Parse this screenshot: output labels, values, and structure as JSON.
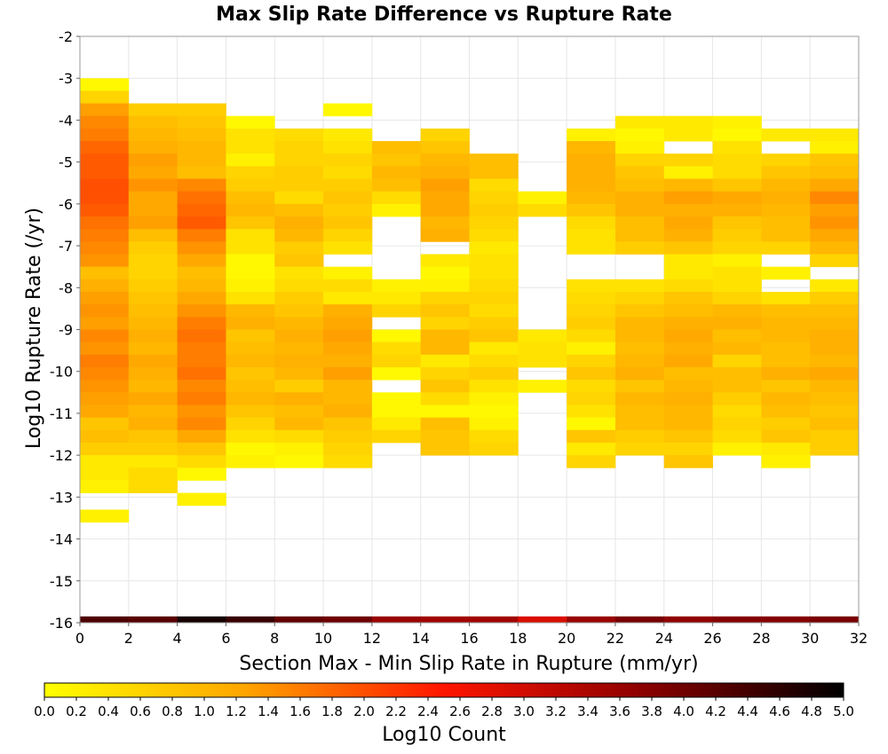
{
  "chart_data": {
    "type": "heatmap",
    "title": "Max Slip Rate Difference vs Rupture Rate",
    "xlabel": "Section Max - Min Slip Rate in Rupture (mm/yr)",
    "ylabel": "Log10 Rupture Rate (/yr)",
    "colorbar_label": "Log10 Count",
    "xlim": [
      0,
      32
    ],
    "ylim": [
      -16,
      -2
    ],
    "x_ticks": [
      "0",
      "2",
      "4",
      "6",
      "8",
      "10",
      "12",
      "14",
      "16",
      "18",
      "20",
      "22",
      "24",
      "26",
      "28",
      "30",
      "32"
    ],
    "y_ticks": [
      "-2",
      "-3",
      "-4",
      "-5",
      "-6",
      "-7",
      "-8",
      "-9",
      "-10",
      "-11",
      "-12",
      "-13",
      "-14",
      "-15",
      "-16"
    ],
    "colorbar_range": [
      0,
      5
    ],
    "colorbar_ticks": [
      "0.0",
      "0.2",
      "0.4",
      "0.6",
      "0.8",
      "1.0",
      "1.2",
      "1.4",
      "1.6",
      "1.8",
      "2.0",
      "2.2",
      "2.4",
      "2.6",
      "2.8",
      "3.0",
      "3.2",
      "3.4",
      "3.6",
      "3.8",
      "4.0",
      "4.2",
      "4.4",
      "4.6",
      "4.8",
      "5.0"
    ],
    "colormap": [
      "#ffff00",
      "#ffa500",
      "#ff1500",
      "#8b0000",
      "#000000"
    ],
    "grid": true,
    "x_bin_width": 2,
    "y_bin_height": 0.3,
    "rows_y_start": [
      -3.0,
      -3.3,
      -3.6,
      -3.9,
      -4.2,
      -4.5,
      -4.8,
      -5.1,
      -5.4,
      -5.7,
      -6.0,
      -6.3,
      -6.6,
      -6.9,
      -7.2,
      -7.5,
      -7.8,
      -8.1,
      -8.4,
      -8.7,
      -9.0,
      -9.3,
      -9.6,
      -9.9,
      -10.2,
      -10.5,
      -10.8,
      -11.1,
      -11.4,
      -11.7,
      -12.0,
      -12.3,
      -12.6,
      -12.9
    ],
    "columns_x_start": [
      0,
      2,
      4,
      6,
      8,
      10,
      12,
      14,
      16,
      18,
      20,
      22,
      24,
      26,
      28,
      30
    ],
    "values_by_row": [
      [
        0.1,
        null,
        null,
        null,
        null,
        null,
        null,
        null,
        null,
        null,
        null,
        null,
        null,
        null,
        null,
        null
      ],
      [
        0.6,
        null,
        null,
        null,
        null,
        null,
        null,
        null,
        null,
        null,
        null,
        null,
        null,
        null,
        null,
        null
      ],
      [
        1.3,
        0.7,
        0.7,
        null,
        null,
        0.1,
        null,
        null,
        null,
        null,
        null,
        null,
        null,
        null,
        null,
        null
      ],
      [
        1.5,
        0.9,
        0.8,
        0.1,
        null,
        null,
        null,
        null,
        null,
        null,
        null,
        0.3,
        0.3,
        0.2,
        null,
        null
      ],
      [
        1.6,
        1.0,
        0.9,
        0.4,
        0.5,
        0.3,
        null,
        0.6,
        null,
        null,
        0.2,
        0.1,
        0.3,
        0.1,
        0.3,
        0.3
      ],
      [
        1.8,
        1.1,
        1.0,
        0.4,
        0.6,
        0.4,
        0.9,
        0.8,
        null,
        null,
        1.0,
        0.2,
        null,
        0.4,
        null,
        0.2
      ],
      [
        1.9,
        1.3,
        1.0,
        0.2,
        0.6,
        0.6,
        0.8,
        1.0,
        0.9,
        null,
        1.1,
        0.6,
        0.6,
        0.5,
        0.6,
        0.8
      ],
      [
        1.9,
        1.2,
        0.9,
        0.6,
        0.7,
        0.5,
        1.0,
        1.1,
        0.9,
        null,
        1.1,
        0.8,
        0.2,
        0.5,
        0.8,
        0.9
      ],
      [
        2.0,
        1.4,
        1.5,
        0.7,
        0.7,
        0.7,
        0.9,
        1.3,
        0.5,
        null,
        1.1,
        0.9,
        1.0,
        0.8,
        1.0,
        1.2
      ],
      [
        2.0,
        1.2,
        1.7,
        0.9,
        0.5,
        0.8,
        0.5,
        1.2,
        0.6,
        0.2,
        1.0,
        1.1,
        1.3,
        1.2,
        1.1,
        1.5
      ],
      [
        1.9,
        1.2,
        1.8,
        1.0,
        0.9,
        0.7,
        0.2,
        1.2,
        0.7,
        0.5,
        0.8,
        1.1,
        1.1,
        1.1,
        1.0,
        1.3
      ],
      [
        1.7,
        1.3,
        1.9,
        0.8,
        1.1,
        0.8,
        null,
        1.0,
        0.6,
        null,
        0.5,
        0.9,
        1.2,
        0.8,
        0.9,
        1.4
      ],
      [
        1.6,
        0.9,
        1.6,
        0.4,
        1.0,
        0.6,
        null,
        1.1,
        0.5,
        null,
        0.4,
        0.9,
        1.1,
        0.7,
        0.9,
        1.2
      ],
      [
        1.5,
        0.7,
        1.4,
        0.4,
        0.7,
        0.4,
        null,
        null,
        0.3,
        null,
        0.4,
        0.7,
        0.8,
        0.6,
        0.6,
        1.0
      ],
      [
        1.4,
        0.6,
        1.2,
        0.1,
        0.8,
        null,
        null,
        0.3,
        0.4,
        null,
        null,
        null,
        0.3,
        0.2,
        null,
        0.6
      ],
      [
        0.9,
        0.6,
        0.9,
        0.1,
        0.4,
        0.2,
        null,
        0.1,
        0.4,
        null,
        null,
        null,
        0.3,
        0.4,
        0.2,
        null
      ],
      [
        1.1,
        0.7,
        1.0,
        0.2,
        0.5,
        0.5,
        0.2,
        0.2,
        0.5,
        null,
        0.4,
        0.4,
        0.5,
        0.4,
        null,
        0.3
      ],
      [
        1.3,
        0.8,
        1.2,
        0.4,
        0.7,
        0.3,
        0.3,
        0.6,
        0.6,
        null,
        0.5,
        0.6,
        0.8,
        0.6,
        0.4,
        0.7
      ],
      [
        1.4,
        0.9,
        1.4,
        1.0,
        0.8,
        1.1,
        0.6,
        0.8,
        0.5,
        null,
        0.6,
        0.8,
        0.9,
        1.0,
        0.9,
        0.9
      ],
      [
        1.3,
        1.0,
        1.6,
        1.1,
        1.0,
        1.2,
        null,
        0.6,
        0.7,
        null,
        0.7,
        1.0,
        1.1,
        1.1,
        1.0,
        1.0
      ],
      [
        1.5,
        1.1,
        1.7,
        0.8,
        1.1,
        1.3,
        0.1,
        1.0,
        0.8,
        0.3,
        0.5,
        1.0,
        1.2,
        0.9,
        1.0,
        1.1
      ],
      [
        1.4,
        1.0,
        1.6,
        0.9,
        1.0,
        1.2,
        0.5,
        1.0,
        0.3,
        0.4,
        0.2,
        0.9,
        1.1,
        1.0,
        0.9,
        1.1
      ],
      [
        1.6,
        1.2,
        1.6,
        1.0,
        1.1,
        1.1,
        0.6,
        0.3,
        0.5,
        0.4,
        0.6,
        1.0,
        1.2,
        0.6,
        0.9,
        1.0
      ],
      [
        1.5,
        1.1,
        1.7,
        0.8,
        1.0,
        1.3,
        0.1,
        0.6,
        0.7,
        null,
        0.8,
        1.1,
        0.9,
        0.9,
        1.1,
        1.2
      ],
      [
        1.4,
        1.0,
        1.5,
        0.9,
        0.7,
        1.0,
        null,
        0.8,
        0.4,
        0.2,
        0.5,
        0.8,
        1.0,
        0.9,
        0.8,
        1.0
      ],
      [
        1.3,
        1.2,
        1.6,
        1.0,
        1.1,
        1.0,
        0.1,
        0.5,
        0.2,
        null,
        0.6,
        1.0,
        1.1,
        0.7,
        1.0,
        0.9
      ],
      [
        1.2,
        1.0,
        1.4,
        0.8,
        0.9,
        1.1,
        0.1,
        0.1,
        0.1,
        null,
        0.4,
        0.9,
        1.0,
        0.5,
        0.9,
        0.8
      ],
      [
        0.8,
        1.1,
        1.5,
        0.6,
        1.0,
        0.8,
        0.3,
        0.9,
        0.2,
        null,
        0.1,
        0.9,
        1.0,
        0.6,
        0.7,
        0.9
      ],
      [
        0.9,
        0.8,
        1.2,
        0.4,
        0.5,
        0.7,
        0.6,
        0.8,
        0.5,
        null,
        0.8,
        0.7,
        0.8,
        0.5,
        0.8,
        0.7
      ],
      [
        0.7,
        0.7,
        0.8,
        0.1,
        0.2,
        0.6,
        null,
        0.8,
        0.6,
        null,
        0.3,
        0.6,
        0.6,
        0.2,
        0.3,
        0.7
      ],
      [
        0.3,
        0.3,
        0.5,
        0.2,
        0.1,
        0.5,
        null,
        null,
        null,
        null,
        0.6,
        null,
        0.8,
        null,
        0.2,
        null
      ],
      [
        0.3,
        0.5,
        0.1,
        null,
        null,
        null,
        null,
        null,
        null,
        null,
        null,
        null,
        null,
        null,
        null,
        null
      ],
      [
        0.2,
        0.5,
        null,
        null,
        null,
        null,
        null,
        null,
        null,
        null,
        null,
        null,
        null,
        null,
        null,
        null
      ],
      [
        null,
        null,
        0.2,
        null,
        null,
        null,
        null,
        null,
        null,
        null,
        null,
        null,
        null,
        null,
        null,
        null
      ]
    ],
    "lone_row_cells": [
      {
        "y_start": -13.3,
        "x_start": 0,
        "value": 0.2
      }
    ],
    "bottom_row": {
      "y_start": -16.0,
      "y_end": -15.85,
      "values": [
        4.3,
        4.2,
        4.8,
        4.5,
        4.1,
        4.0,
        3.6,
        3.5,
        3.5,
        2.9,
        3.6,
        3.9,
        3.7,
        3.8,
        3.8,
        3.9
      ]
    }
  }
}
